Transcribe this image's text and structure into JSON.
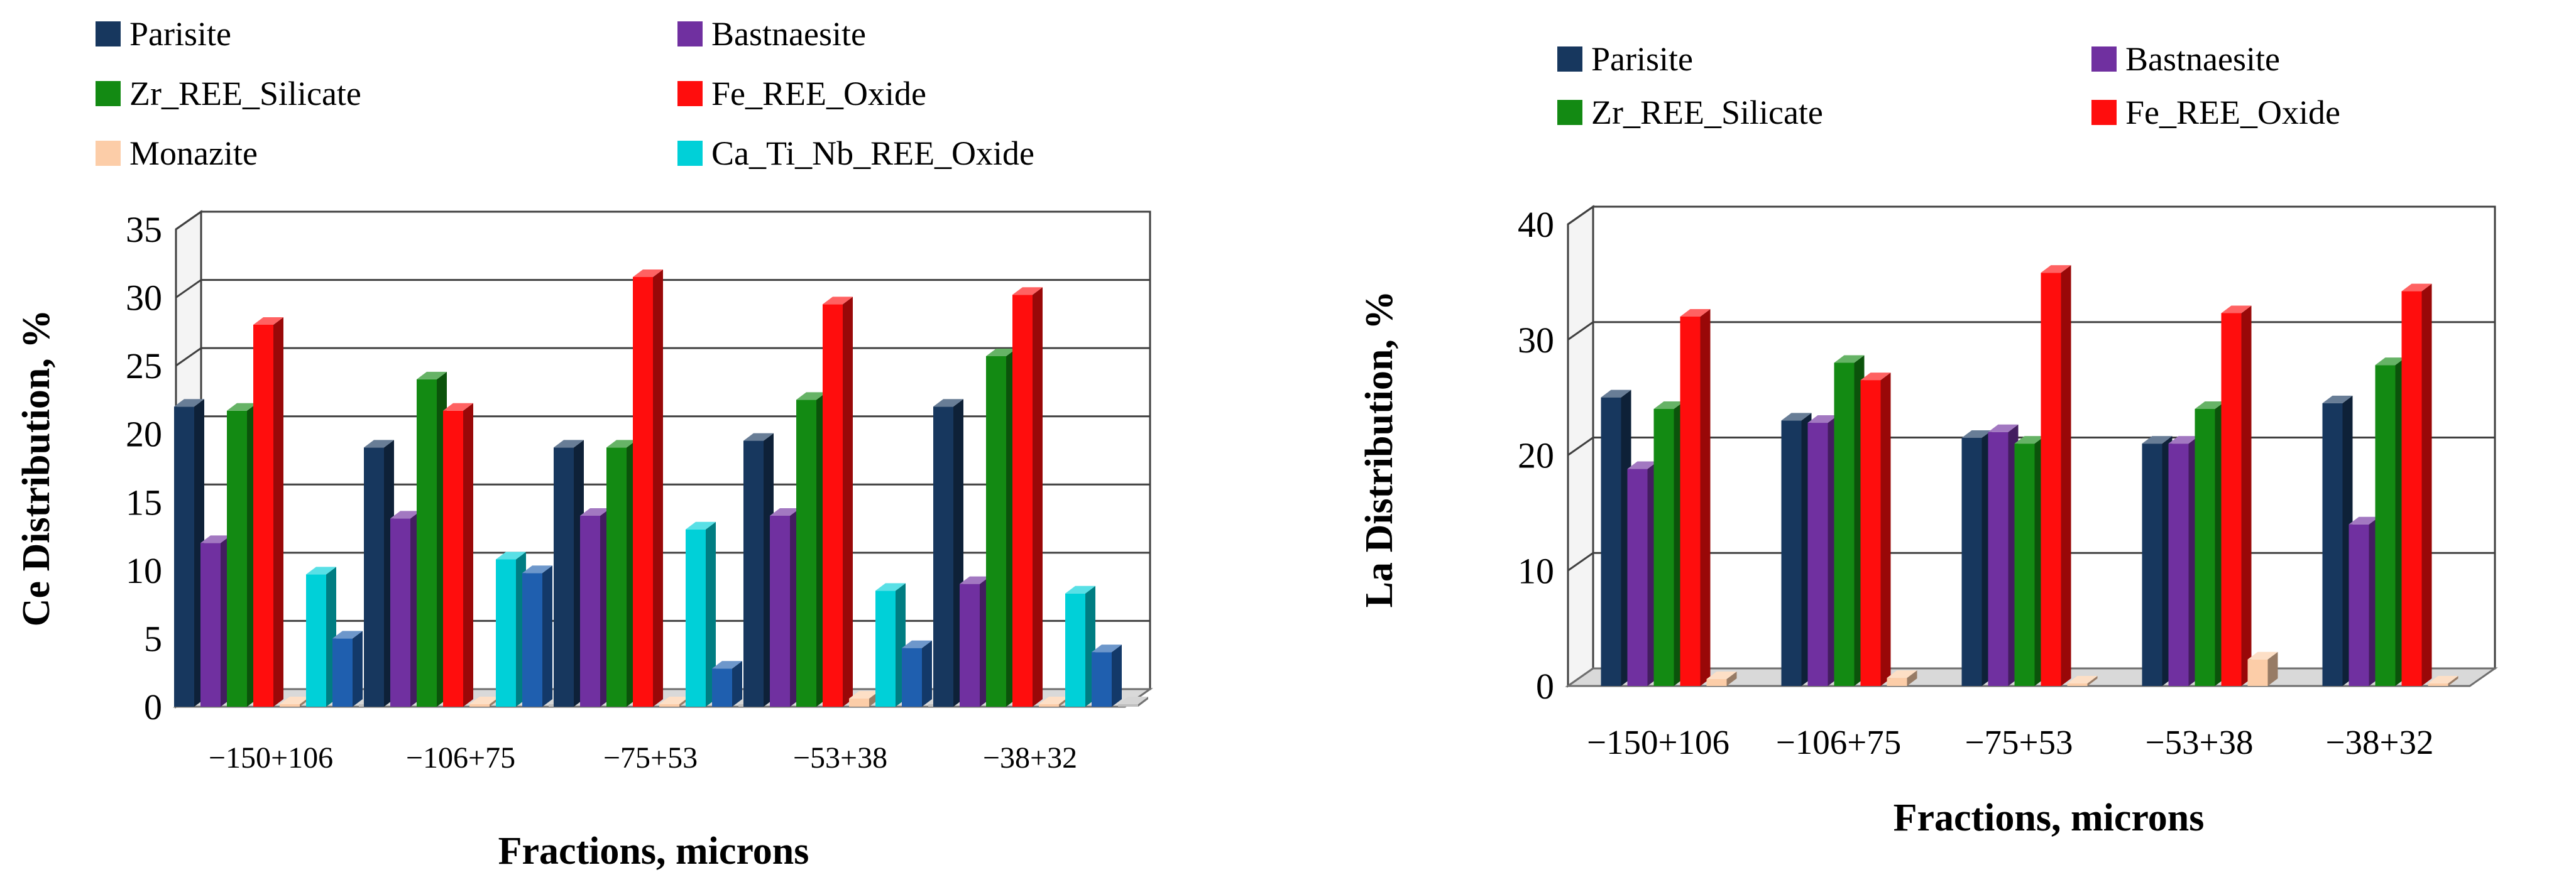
{
  "chart_data": [
    {
      "type": "bar",
      "title": "",
      "xlabel": "Fractions, microns",
      "ylabel": "Ce Distribution, %",
      "ylim": [
        0,
        35
      ],
      "yticks": [
        "0",
        "5",
        "10",
        "15",
        "20",
        "25",
        "30",
        "35"
      ],
      "grid": true,
      "legend_placement": "top",
      "categories": [
        "−150+106",
        "−106+75",
        "−75+53",
        "−53+38",
        "−38+32"
      ],
      "series": [
        {
          "name": "Parisite",
          "color": "#17375E",
          "values": [
            22,
            19,
            19,
            19.5,
            22
          ]
        },
        {
          "name": "Bastnaesite",
          "color": "#7030A0",
          "values": [
            12,
            13.8,
            14,
            14,
            9
          ]
        },
        {
          "name": "Zr_REE_Silicate",
          "color": "#138A13",
          "values": [
            21.7,
            24,
            19,
            22.5,
            25.7
          ]
        },
        {
          "name": "Fe_REE_Oxide",
          "color": "#FF0D0D",
          "values": [
            28,
            21.7,
            31.5,
            29.5,
            30.2
          ]
        },
        {
          "name": "Monazite",
          "color": "#FCCDA8",
          "values": [
            0.1,
            0.1,
            0.1,
            0.6,
            0.1
          ]
        },
        {
          "name": "Ca_Ti_Nb_REE_Oxide",
          "color": "#00D0D8",
          "values": [
            9.7,
            10.8,
            13,
            8.5,
            8.3
          ]
        },
        {
          "name": "",
          "color": "#1F5FAF",
          "values": [
            5,
            9.8,
            2.8,
            4.3,
            4
          ]
        },
        {
          "name": "",
          "color": "#BFBFBF",
          "values": [
            0,
            0,
            0,
            0,
            0
          ]
        }
      ]
    },
    {
      "type": "bar",
      "title": "",
      "xlabel": "Fractions, microns",
      "ylabel": "La Distribution, %",
      "ylim": [
        0,
        40
      ],
      "yticks": [
        "0",
        "10",
        "20",
        "30",
        "40"
      ],
      "grid": true,
      "legend_placement": "top",
      "categories": [
        "−150+106",
        "−106+75",
        "−75+53",
        "−53+38",
        "−38+32"
      ],
      "series": [
        {
          "name": "Parisite",
          "color": "#17375E",
          "values": [
            25,
            23,
            21.5,
            21,
            24.5
          ]
        },
        {
          "name": "Bastnaesite",
          "color": "#7030A0",
          "values": [
            18.8,
            22.8,
            22,
            21,
            14
          ]
        },
        {
          "name": "Zr_REE_Silicate",
          "color": "#138A13",
          "values": [
            24,
            28,
            21,
            24,
            27.8
          ]
        },
        {
          "name": "Fe_REE_Oxide",
          "color": "#FF0D0D",
          "values": [
            32,
            26.5,
            35.8,
            32.3,
            34.2
          ]
        },
        {
          "name": "",
          "color": "#FCCDA8",
          "values": [
            0.6,
            0.7,
            0.2,
            2.3,
            0.1
          ]
        }
      ]
    }
  ]
}
